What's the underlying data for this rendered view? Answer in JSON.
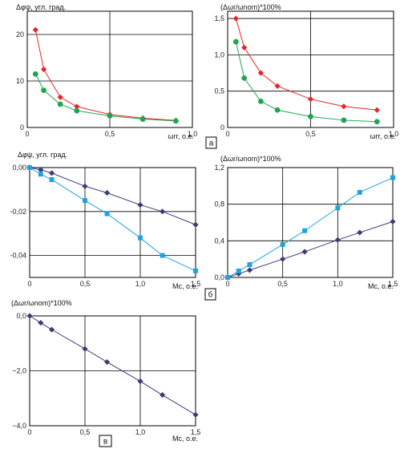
{
  "chart_data": [
    {
      "type": "line",
      "ylabel": "Δφψ, угл. град.",
      "xlabel": "ωrr, о.е.",
      "xlim": [
        0,
        1.0
      ],
      "ylim": [
        0,
        25
      ],
      "xticks": [
        0,
        0.5,
        1.0
      ],
      "xtick_labels": [
        "0",
        "0,5",
        "1,0"
      ],
      "yticks": [
        0,
        10,
        20
      ],
      "ytick_labels": [
        "0",
        "10",
        "20"
      ],
      "grid": true,
      "series": [
        {
          "color": "#e8242b",
          "marker": "diamond",
          "x": [
            0.05,
            0.1,
            0.2,
            0.3,
            0.5,
            0.7,
            0.9
          ],
          "y": [
            21.0,
            12.5,
            6.5,
            4.5,
            2.8,
            2.0,
            1.5
          ]
        },
        {
          "color": "#1fa651",
          "marker": "circle",
          "x": [
            0.05,
            0.1,
            0.2,
            0.3,
            0.5,
            0.7,
            0.9
          ],
          "y": [
            11.5,
            8.0,
            5.0,
            3.6,
            2.5,
            1.8,
            1.4
          ]
        }
      ]
    },
    {
      "type": "line",
      "ylabel": "(Δωr/ωnom)*100%",
      "xlabel": "ωrr, о.е.",
      "xlim": [
        0,
        1.0
      ],
      "ylim": [
        0,
        1.6
      ],
      "xticks": [
        0,
        0.5,
        1.0
      ],
      "xtick_labels": [
        "0",
        "0,5",
        "1,0"
      ],
      "yticks": [
        0,
        0.5,
        1.0,
        1.5
      ],
      "ytick_labels": [
        "0",
        "0,5",
        "1,0",
        "1,5"
      ],
      "grid": true,
      "tag": "а",
      "series": [
        {
          "color": "#e8242b",
          "marker": "diamond",
          "x": [
            0.05,
            0.1,
            0.2,
            0.3,
            0.5,
            0.7,
            0.9
          ],
          "y": [
            1.5,
            1.1,
            0.75,
            0.57,
            0.39,
            0.29,
            0.24
          ]
        },
        {
          "color": "#1fa651",
          "marker": "circle",
          "x": [
            0.05,
            0.1,
            0.2,
            0.3,
            0.5,
            0.7,
            0.9
          ],
          "y": [
            1.18,
            0.68,
            0.36,
            0.24,
            0.15,
            0.1,
            0.08
          ]
        }
      ]
    },
    {
      "type": "line",
      "ylabel": "Δφψ, угл. град.",
      "xlabel": "Mc, о.е.",
      "xlim": [
        0,
        1.5
      ],
      "ylim": [
        -0.05,
        0
      ],
      "xticks": [
        0,
        0.5,
        1.0,
        1.5
      ],
      "xtick_labels": [
        "0",
        "0,5",
        "1,0",
        "1,5"
      ],
      "yticks": [
        0,
        -0.02,
        -0.04
      ],
      "ytick_labels": [
        "0,00",
        "-0,02",
        "-0,04"
      ],
      "grid": true,
      "series": [
        {
          "color": "#3c3c7a",
          "marker": "diamond",
          "x": [
            0,
            0.1,
            0.2,
            0.5,
            0.7,
            1.0,
            1.2,
            1.5
          ],
          "y": [
            0,
            -0.001,
            -0.0025,
            -0.0085,
            -0.0115,
            -0.017,
            -0.02,
            -0.026
          ]
        },
        {
          "color": "#1fa3e0",
          "marker": "square",
          "x": [
            0,
            0.1,
            0.2,
            0.5,
            0.7,
            1.0,
            1.2,
            1.5
          ],
          "y": [
            0,
            -0.003,
            -0.0055,
            -0.015,
            -0.021,
            -0.032,
            -0.04,
            -0.047
          ]
        }
      ]
    },
    {
      "type": "line",
      "ylabel": "(Δωr/ωnom)*100%",
      "xlabel": "Mc, о.е.",
      "xlim": [
        0,
        1.5
      ],
      "ylim": [
        0,
        1.2
      ],
      "xticks": [
        0,
        0.5,
        1.0,
        1.5
      ],
      "xtick_labels": [
        "0",
        "0,5",
        "1,0",
        "1,5"
      ],
      "yticks": [
        0,
        0.4,
        0.8,
        1.2
      ],
      "ytick_labels": [
        "0,0",
        "0,4",
        "0,8",
        "1,2"
      ],
      "grid": true,
      "tag": "б",
      "series": [
        {
          "color": "#3c3c7a",
          "marker": "diamond",
          "x": [
            0,
            0.1,
            0.2,
            0.5,
            0.7,
            1.0,
            1.2,
            1.5
          ],
          "y": [
            0,
            0.04,
            0.08,
            0.2,
            0.28,
            0.41,
            0.49,
            0.61
          ]
        },
        {
          "color": "#1fa3e0",
          "marker": "square",
          "x": [
            0,
            0.1,
            0.2,
            0.5,
            0.7,
            1.0,
            1.2,
            1.5
          ],
          "y": [
            0,
            0.07,
            0.14,
            0.36,
            0.51,
            0.76,
            0.93,
            1.09
          ]
        }
      ]
    },
    {
      "type": "line",
      "ylabel": "(Δωr/ωnom)*100%",
      "xlabel": "Mc, о.е.",
      "xlim": [
        0,
        1.5
      ],
      "ylim": [
        -4.0,
        0
      ],
      "xticks": [
        0,
        0.5,
        1.0,
        1.5
      ],
      "xtick_labels": [
        "0",
        "0,5",
        "1,0",
        "1,5"
      ],
      "yticks": [
        0,
        -2.0,
        -4.0
      ],
      "ytick_labels": [
        "0,0",
        "−2,0",
        "−4,0"
      ],
      "grid": true,
      "tag": "в",
      "series": [
        {
          "color": "#3c3c7a",
          "marker": "diamond",
          "x": [
            0,
            0.1,
            0.2,
            0.5,
            0.7,
            1.0,
            1.2,
            1.5
          ],
          "y": [
            0,
            -0.25,
            -0.5,
            -1.2,
            -1.68,
            -2.38,
            -2.88,
            -3.6
          ]
        }
      ]
    }
  ]
}
